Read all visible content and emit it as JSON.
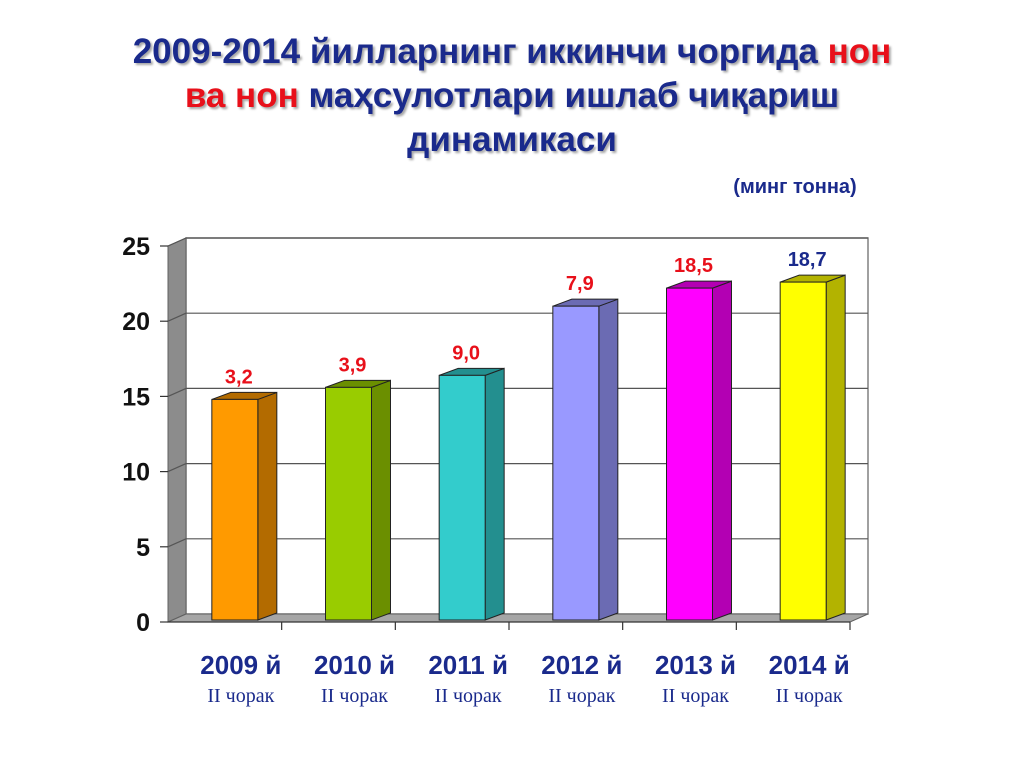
{
  "title": {
    "line1_prefix": "2009-2014 йилларнинг иккинчи чоргида ",
    "line1_highlight": "нон",
    "line2_highlight": "ва нон",
    "line2_rest": " маҳсулотлари ишлаб чиқариш",
    "line3": "динамикаси",
    "title_color": "#1a2a8c",
    "highlight_color": "#e8101a"
  },
  "unit_label": "(минг тонна)",
  "chart_data": {
    "type": "bar",
    "categories": [
      "2009 й",
      "2010 й",
      "2011 й",
      "2012 й",
      "2013 й",
      "2014 й"
    ],
    "subcategories": [
      "II чорак",
      "II чорак",
      "II чорак",
      "II чорак",
      "II чорак",
      "II чорак"
    ],
    "values": [
      14.8,
      15.6,
      16.4,
      21.0,
      22.2,
      22.6
    ],
    "data_labels": [
      "3,2",
      "3,9",
      "9,0",
      "7,9",
      "18,5",
      "18,7"
    ],
    "data_label_colors": [
      "#e8101a",
      "#e8101a",
      "#e8101a",
      "#e8101a",
      "#e8101a",
      "#1a2a8c"
    ],
    "bar_colors": [
      "#ff9a00",
      "#99cc00",
      "#33cccc",
      "#9999ff",
      "#ff00ff",
      "#ffff00"
    ],
    "bar_side_colors": [
      "#b36b00",
      "#6b8f00",
      "#238f8f",
      "#6b6bb3",
      "#b300b3",
      "#b3b300"
    ],
    "yticks": [
      "0",
      "5",
      "10",
      "15",
      "20",
      "25"
    ],
    "ylim": [
      0,
      25
    ],
    "grid": true,
    "xlabel": "",
    "ylabel": "",
    "category_label_color": "#1a2a8c"
  }
}
